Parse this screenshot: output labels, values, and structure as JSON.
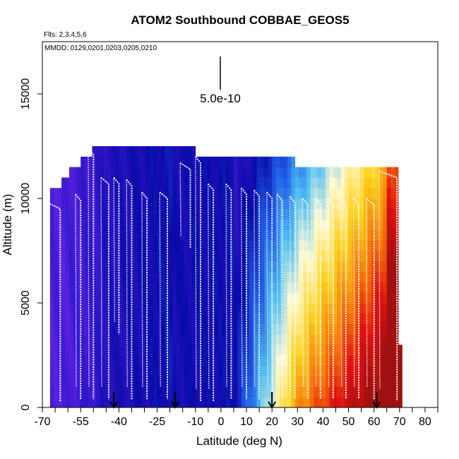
{
  "chart_data": {
    "type": "heatmap",
    "title": "ATOM2 Southbound COBBAE_GEOS5",
    "subtitle_flights": "Flts: 2,3,4,5,6",
    "subtitle_dates": "MMDD: 0129,0201,0203,0205,0210",
    "xlabel": "Latitude (deg N)",
    "ylabel": "Altitude (m)",
    "xlim": [
      -70,
      85
    ],
    "ylim": [
      0,
      17500
    ],
    "x_ticks": [
      -70,
      -55,
      -40,
      -25,
      -10,
      0,
      10,
      20,
      30,
      40,
      50,
      60,
      70,
      80
    ],
    "x_tick_labels": [
      "-70",
      "-55",
      "-40",
      "-25",
      "-10",
      "0",
      "10",
      "20",
      "30",
      "40",
      "50",
      "60",
      "70",
      "80"
    ],
    "x_minor_ticks": [
      -65,
      -60,
      -50,
      -45,
      -35,
      -30,
      -20,
      -15,
      -5,
      5,
      15,
      25,
      35,
      45,
      55,
      65,
      75,
      85
    ],
    "y_ticks": [
      0,
      5000,
      10000,
      15000
    ],
    "y_tick_labels": [
      "0",
      "5000",
      "10000",
      "15000"
    ],
    "scale_bar": {
      "label": "5.0e-10",
      "x": 0,
      "y_from": 15800,
      "y_to": 17500
    },
    "flight_boundary_arrows_lat": [
      -42,
      -18,
      20,
      61
    ],
    "column_ceilings_m": [
      {
        "from": -67,
        "to": -63,
        "top": 10500
      },
      {
        "from": -63,
        "to": -59,
        "top": 11000
      },
      {
        "from": -59,
        "to": -55,
        "top": 11500
      },
      {
        "from": -55,
        "to": -50,
        "top": 12000
      },
      {
        "from": -50,
        "to": -27,
        "top": 12500
      },
      {
        "from": -27,
        "to": -10,
        "top": 12500
      },
      {
        "from": -10,
        "to": 0,
        "top": 12000
      },
      {
        "from": 0,
        "to": 29,
        "top": 12000
      },
      {
        "from": 29,
        "to": 40,
        "top": 11500
      },
      {
        "from": 40,
        "to": 63,
        "top": 11500
      },
      {
        "from": 63,
        "to": 70,
        "top": 11500
      },
      {
        "from": 70,
        "to": 71,
        "top": 3000
      }
    ],
    "concentration_color_scale": [
      "#7a2bf0",
      "#3a18d0",
      "#0a0aa8",
      "#1f5ee8",
      "#52bff2",
      "#fffad2",
      "#ffd21e",
      "#f77a0a",
      "#e01010",
      "#a01010"
    ],
    "flight_track_profiles": [
      {
        "lat": -68,
        "lat_end": -63,
        "z_top": 9800,
        "z_bottom": 300
      },
      {
        "lat": -57,
        "lat_end": -55,
        "z_top": 10200,
        "z_bottom": 400
      },
      {
        "lat": -52,
        "lat_end": -50,
        "z_top": 12400,
        "z_bottom": 400
      },
      {
        "lat": -47,
        "lat_end": -44,
        "z_top": 11000,
        "z_bottom": 400
      },
      {
        "lat": -42,
        "lat_end": -40,
        "z_top": 11000,
        "z_bottom": 3500
      },
      {
        "lat": -37,
        "lat_end": -35,
        "z_top": 10900,
        "z_bottom": 400
      },
      {
        "lat": -31,
        "lat_end": -29,
        "z_top": 10300,
        "z_bottom": 400
      },
      {
        "lat": -24,
        "lat_end": -21,
        "z_top": 10300,
        "z_bottom": 400
      },
      {
        "lat": -16,
        "lat_end": -12,
        "z_top": 11700,
        "z_bottom": 7600
      },
      {
        "lat": -10,
        "lat_end": -8,
        "z_top": 12000,
        "z_bottom": 300
      },
      {
        "lat": -5,
        "lat_end": -3,
        "z_top": 10700,
        "z_bottom": 300
      },
      {
        "lat": 2,
        "lat_end": 4,
        "z_top": 10700,
        "z_bottom": 400
      },
      {
        "lat": 8,
        "lat_end": 10,
        "z_top": 10500,
        "z_bottom": 400
      },
      {
        "lat": 13,
        "lat_end": 15,
        "z_top": 10400,
        "z_bottom": 400
      },
      {
        "lat": 18,
        "lat_end": 20,
        "z_top": 10300,
        "z_bottom": 400
      },
      {
        "lat": 22,
        "lat_end": 24,
        "z_top": 10200,
        "z_bottom": 400
      },
      {
        "lat": 27,
        "lat_end": 29,
        "z_top": 10100,
        "z_bottom": 400
      },
      {
        "lat": 32,
        "lat_end": 34,
        "z_top": 10000,
        "z_bottom": 400
      },
      {
        "lat": 37,
        "lat_end": 39,
        "z_top": 10000,
        "z_bottom": 400
      },
      {
        "lat": 42,
        "lat_end": 44,
        "z_top": 10000,
        "z_bottom": 400
      },
      {
        "lat": 47,
        "lat_end": 49,
        "z_top": 10000,
        "z_bottom": 400
      },
      {
        "lat": 52,
        "lat_end": 54,
        "z_top": 10000,
        "z_bottom": 400
      },
      {
        "lat": 57,
        "lat_end": 60,
        "z_top": 10000,
        "z_bottom": 400
      },
      {
        "lat": 62,
        "lat_end": 69,
        "z_top": 11300,
        "z_bottom": 300
      }
    ]
  }
}
